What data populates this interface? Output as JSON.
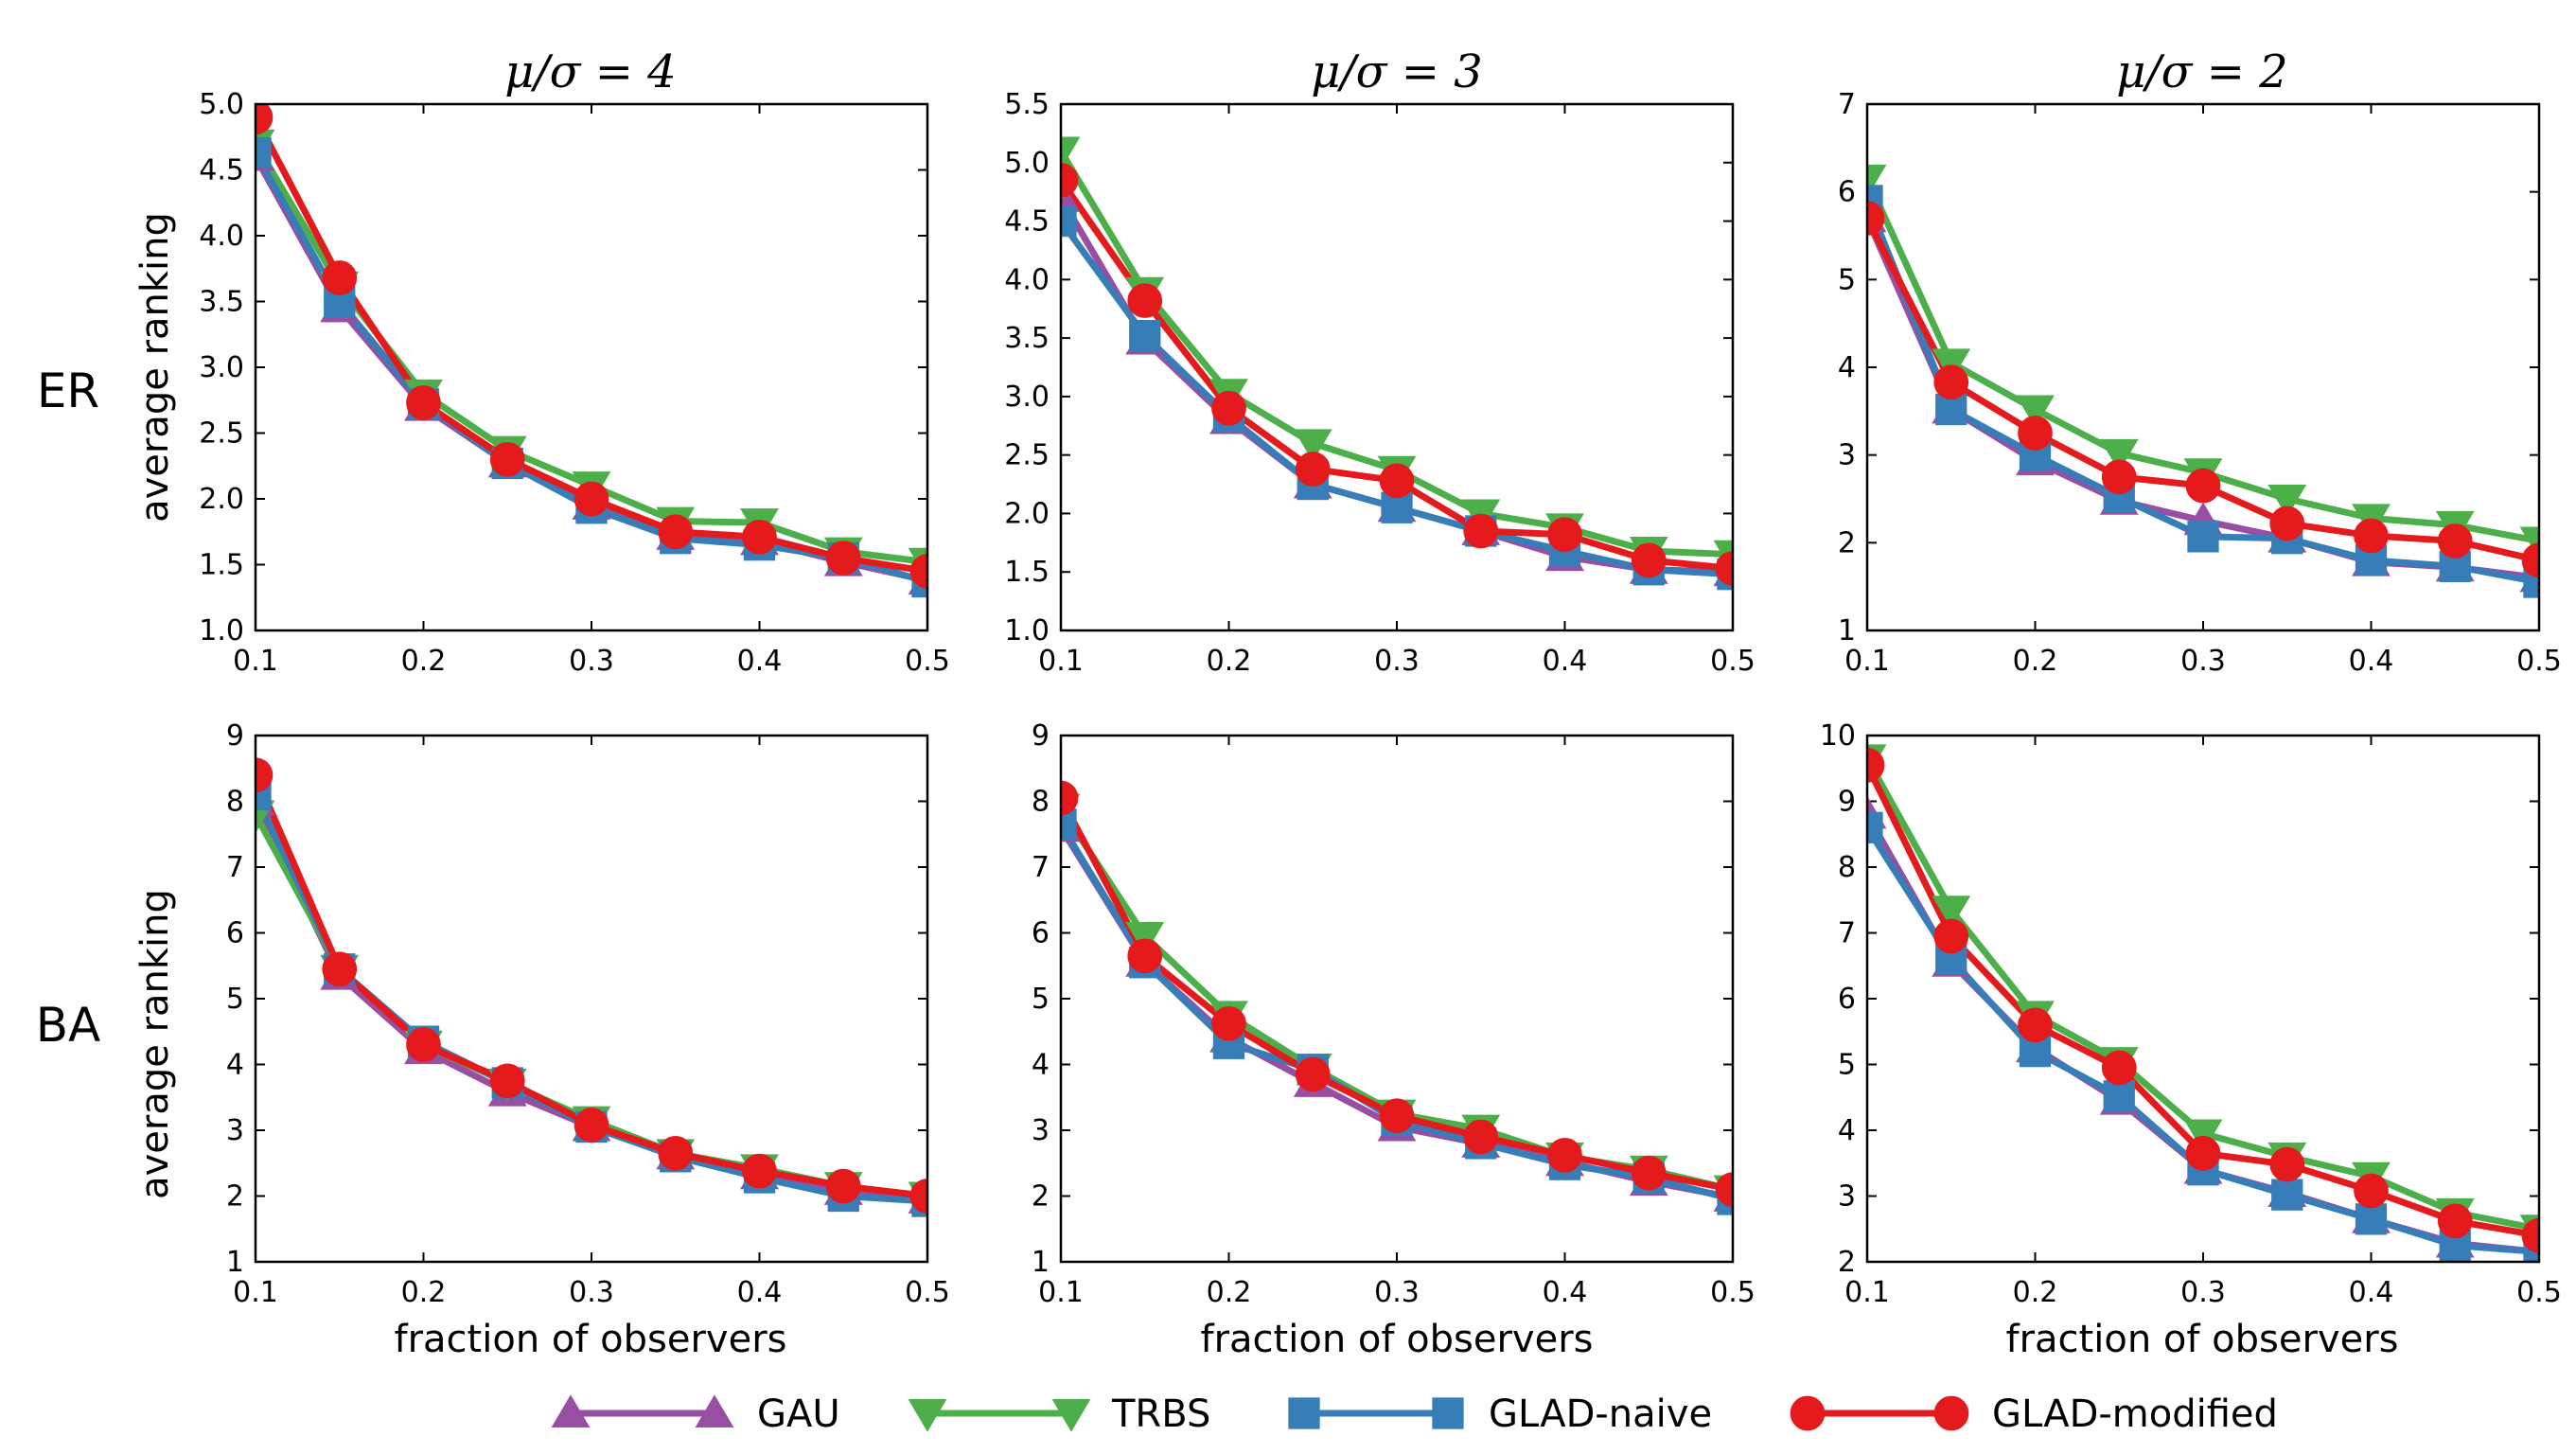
{
  "figure": {
    "row_labels": [
      "ER",
      "BA"
    ],
    "column_titles": [
      "μ/σ = 4",
      "μ/σ = 3",
      "μ/σ = 2"
    ],
    "xlabel": "fraction of observers",
    "ylabel": "average ranking"
  },
  "legend": [
    {
      "name": "GAU",
      "color": "#984ea3",
      "marker": "triangle-up"
    },
    {
      "name": "TRBS",
      "color": "#4daf4a",
      "marker": "triangle-down"
    },
    {
      "name": "GLAD-naive",
      "color": "#377eb8",
      "marker": "square"
    },
    {
      "name": "GLAD-modified",
      "color": "#e41a1c",
      "marker": "circle"
    }
  ],
  "chart_data": [
    {
      "type": "line",
      "row": "ER",
      "title": "μ/σ = 4",
      "xlabel": "",
      "ylabel": "average ranking",
      "x": [
        0.1,
        0.15,
        0.2,
        0.25,
        0.3,
        0.35,
        0.4,
        0.45,
        0.5
      ],
      "xlim": [
        0.1,
        0.5
      ],
      "ylim": [
        1.0,
        5.0
      ],
      "xticks": [
        "0.1",
        "0.2",
        "0.3",
        "0.4",
        "0.5"
      ],
      "yticks": [
        "1.0",
        "1.5",
        "2.0",
        "2.5",
        "3.0",
        "3.5",
        "4.0",
        "4.5",
        "5.0"
      ],
      "series": [
        {
          "name": "GAU",
          "values": [
            4.6,
            3.45,
            2.7,
            2.27,
            1.95,
            1.72,
            1.68,
            1.52,
            1.38
          ]
        },
        {
          "name": "TRBS",
          "values": [
            4.7,
            3.62,
            2.8,
            2.37,
            2.1,
            1.83,
            1.82,
            1.6,
            1.52
          ]
        },
        {
          "name": "GLAD-naive",
          "values": [
            4.63,
            3.5,
            2.72,
            2.27,
            1.93,
            1.7,
            1.65,
            1.55,
            1.37
          ]
        },
        {
          "name": "GLAD-modified",
          "values": [
            4.9,
            3.68,
            2.73,
            2.3,
            2.0,
            1.75,
            1.71,
            1.55,
            1.45
          ]
        }
      ]
    },
    {
      "type": "line",
      "row": "ER",
      "title": "μ/σ = 3",
      "xlabel": "",
      "ylabel": "",
      "x": [
        0.1,
        0.15,
        0.2,
        0.25,
        0.3,
        0.35,
        0.4,
        0.45,
        0.5
      ],
      "xlim": [
        0.1,
        0.5
      ],
      "ylim": [
        1.0,
        5.5
      ],
      "xticks": [
        "0.1",
        "0.2",
        "0.3",
        "0.4",
        "0.5"
      ],
      "yticks": [
        "1.0",
        "1.5",
        "2.0",
        "2.5",
        "3.0",
        "3.5",
        "4.0",
        "4.5",
        "5.0",
        "5.5"
      ],
      "series": [
        {
          "name": "GAU",
          "values": [
            4.7,
            3.48,
            2.8,
            2.25,
            2.05,
            1.85,
            1.63,
            1.52,
            1.5
          ]
        },
        {
          "name": "TRBS",
          "values": [
            5.1,
            3.9,
            3.03,
            2.6,
            2.37,
            2.0,
            1.88,
            1.68,
            1.65
          ]
        },
        {
          "name": "GLAD-naive",
          "values": [
            4.5,
            3.52,
            2.83,
            2.25,
            2.05,
            1.85,
            1.68,
            1.52,
            1.48
          ]
        },
        {
          "name": "GLAD-modified",
          "values": [
            4.85,
            3.82,
            2.9,
            2.38,
            2.28,
            1.85,
            1.82,
            1.6,
            1.53
          ]
        }
      ]
    },
    {
      "type": "line",
      "row": "ER",
      "title": "μ/σ = 2",
      "xlabel": "",
      "ylabel": "",
      "x": [
        0.1,
        0.15,
        0.2,
        0.25,
        0.3,
        0.35,
        0.4,
        0.45,
        0.5
      ],
      "xlim": [
        0.1,
        0.5
      ],
      "ylim": [
        1,
        7
      ],
      "xticks": [
        "0.1",
        "0.2",
        "0.3",
        "0.4",
        "0.5"
      ],
      "yticks": [
        "1",
        "2",
        "3",
        "4",
        "5",
        "6",
        "7"
      ],
      "series": [
        {
          "name": "GAU",
          "values": [
            5.7,
            3.52,
            2.93,
            2.48,
            2.25,
            2.05,
            1.78,
            1.72,
            1.6
          ]
        },
        {
          "name": "TRBS",
          "values": [
            6.15,
            4.05,
            3.52,
            3.02,
            2.8,
            2.5,
            2.28,
            2.2,
            2.02
          ]
        },
        {
          "name": "GLAD-naive",
          "values": [
            5.9,
            3.52,
            3.0,
            2.52,
            2.07,
            2.05,
            1.8,
            1.73,
            1.55
          ]
        },
        {
          "name": "GLAD-modified",
          "values": [
            5.7,
            3.83,
            3.25,
            2.75,
            2.65,
            2.22,
            2.08,
            2.02,
            1.8
          ]
        }
      ]
    },
    {
      "type": "line",
      "row": "BA",
      "title": "",
      "xlabel": "fraction of observers",
      "ylabel": "average ranking",
      "x": [
        0.1,
        0.15,
        0.2,
        0.25,
        0.3,
        0.35,
        0.4,
        0.45,
        0.5
      ],
      "xlim": [
        0.1,
        0.5
      ],
      "ylim": [
        1,
        9
      ],
      "xticks": [
        "0.1",
        "0.2",
        "0.3",
        "0.4",
        "0.5"
      ],
      "yticks": [
        "1",
        "2",
        "3",
        "4",
        "5",
        "6",
        "7",
        "8",
        "9"
      ],
      "series": [
        {
          "name": "GAU",
          "values": [
            8.0,
            5.35,
            4.22,
            3.58,
            3.05,
            2.62,
            2.32,
            2.08,
            1.95
          ]
        },
        {
          "name": "TRBS",
          "values": [
            7.8,
            5.45,
            4.3,
            3.72,
            3.15,
            2.65,
            2.42,
            2.15,
            2.0
          ]
        },
        {
          "name": "GLAD-naive",
          "values": [
            8.1,
            5.45,
            4.35,
            3.72,
            3.05,
            2.6,
            2.28,
            2.0,
            1.92
          ]
        },
        {
          "name": "GLAD-modified",
          "values": [
            8.4,
            5.45,
            4.3,
            3.75,
            3.08,
            2.65,
            2.38,
            2.15,
            2.0
          ]
        }
      ]
    },
    {
      "type": "line",
      "row": "BA",
      "title": "",
      "xlabel": "fraction of observers",
      "ylabel": "",
      "x": [
        0.1,
        0.15,
        0.2,
        0.25,
        0.3,
        0.35,
        0.4,
        0.45,
        0.5
      ],
      "xlim": [
        0.1,
        0.5
      ],
      "ylim": [
        1,
        9
      ],
      "xticks": [
        "0.1",
        "0.2",
        "0.3",
        "0.4",
        "0.5"
      ],
      "yticks": [
        "1",
        "2",
        "3",
        "4",
        "5",
        "6",
        "7",
        "8",
        "9"
      ],
      "series": [
        {
          "name": "GAU",
          "values": [
            7.6,
            5.55,
            4.4,
            3.72,
            3.05,
            2.8,
            2.52,
            2.22,
            1.98
          ]
        },
        {
          "name": "TRBS",
          "values": [
            7.9,
            5.95,
            4.75,
            3.95,
            3.25,
            3.02,
            2.6,
            2.4,
            2.1
          ]
        },
        {
          "name": "GLAD-naive",
          "values": [
            7.65,
            5.55,
            4.32,
            3.92,
            3.15,
            2.8,
            2.48,
            2.28,
            1.95
          ]
        },
        {
          "name": "GLAD-modified",
          "values": [
            8.05,
            5.65,
            4.62,
            3.85,
            3.22,
            2.9,
            2.62,
            2.35,
            2.1
          ]
        }
      ]
    },
    {
      "type": "line",
      "row": "BA",
      "title": "",
      "xlabel": "fraction of observers",
      "ylabel": "",
      "x": [
        0.1,
        0.15,
        0.2,
        0.25,
        0.3,
        0.35,
        0.4,
        0.45,
        0.5
      ],
      "xlim": [
        0.1,
        0.5
      ],
      "ylim": [
        2,
        10
      ],
      "xticks": [
        "0.1",
        "0.2",
        "0.3",
        "0.4",
        "0.5"
      ],
      "yticks": [
        "2",
        "3",
        "4",
        "5",
        "6",
        "7",
        "8",
        "9",
        "10"
      ],
      "series": [
        {
          "name": "GAU",
          "values": [
            8.8,
            6.55,
            5.25,
            4.45,
            3.4,
            3.05,
            2.65,
            2.28,
            2.15
          ]
        },
        {
          "name": "TRBS",
          "values": [
            9.65,
            7.35,
            5.75,
            5.05,
            3.95,
            3.6,
            3.3,
            2.75,
            2.5
          ]
        },
        {
          "name": "GLAD-naive",
          "values": [
            8.6,
            6.6,
            5.2,
            4.52,
            3.4,
            3.02,
            2.65,
            2.25,
            2.15
          ]
        },
        {
          "name": "GLAD-modified",
          "values": [
            9.55,
            6.95,
            5.6,
            4.95,
            3.65,
            3.48,
            3.08,
            2.62,
            2.4
          ]
        }
      ]
    }
  ]
}
